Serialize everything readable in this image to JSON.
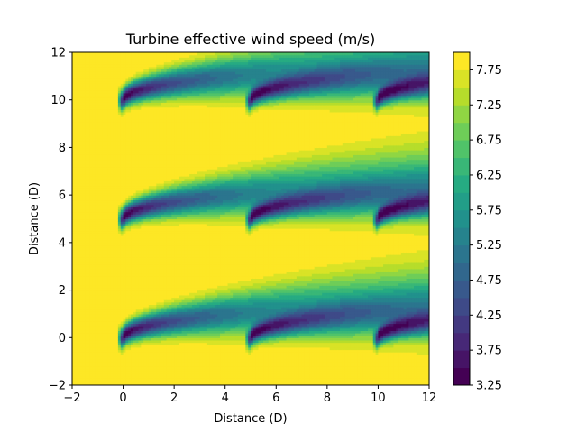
{
  "chart_data": {
    "type": "heatmap",
    "title": "Turbine effective wind speed (m/s)",
    "xlabel": "Distance (D)",
    "ylabel": "Distance (D)",
    "xlim": [
      -2,
      12
    ],
    "ylim": [
      -2,
      12
    ],
    "xticks": [
      -2,
      0,
      2,
      4,
      6,
      8,
      10,
      12
    ],
    "yticks": [
      -2,
      0,
      2,
      4,
      6,
      8,
      10,
      12
    ],
    "field_x_range": [
      -2,
      12
    ],
    "colormap": "viridis",
    "colorbar": {
      "min": 3.25,
      "max": 8.0,
      "levels": [
        3.25,
        3.5,
        3.75,
        4.0,
        4.25,
        4.5,
        4.75,
        5.0,
        5.25,
        5.5,
        5.75,
        6.0,
        6.25,
        6.5,
        6.75,
        7.0,
        7.25,
        7.5,
        7.75,
        8.0
      ],
      "tick_labels": [
        "3.25",
        "3.75",
        "4.25",
        "4.75",
        "5.25",
        "5.75",
        "6.25",
        "6.75",
        "7.25",
        "7.75"
      ]
    },
    "freestream_speed": 8.0,
    "turbines": [
      {
        "x": 0,
        "y": 0
      },
      {
        "x": 5,
        "y": 0
      },
      {
        "x": 10,
        "y": 0
      },
      {
        "x": 0,
        "y": 5
      },
      {
        "x": 5,
        "y": 5
      },
      {
        "x": 10,
        "y": 5
      },
      {
        "x": 0,
        "y": 10
      },
      {
        "x": 5,
        "y": 10
      },
      {
        "x": 10,
        "y": 10
      }
    ],
    "grid": false
  },
  "colors": {
    "background": "#ffffff",
    "axes": "#000000"
  }
}
